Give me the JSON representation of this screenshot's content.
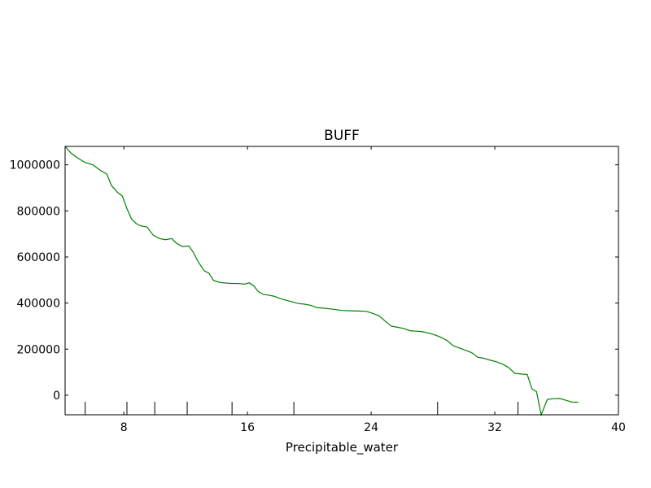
{
  "chart_data": {
    "type": "line",
    "title": "BUFF",
    "xlabel": "Precipitable_water",
    "ylabel": "",
    "xlim": [
      4.2,
      40
    ],
    "ylim": [
      -85000,
      1080000
    ],
    "xticks": [
      8,
      16,
      24,
      32,
      40
    ],
    "xtick_labels": [
      "8",
      "16",
      "24",
      "32",
      "40"
    ],
    "yticks": [
      0,
      200000,
      400000,
      600000,
      800000,
      1000000
    ],
    "ytick_labels": [
      "0",
      "200000",
      "400000",
      "600000",
      "800000",
      "1000000"
    ],
    "rug_x": [
      5.5,
      8.2,
      10.0,
      12.1,
      15.0,
      19.0,
      28.3,
      33.5
    ],
    "grid": false,
    "series": [
      {
        "color": "#008000",
        "x": [
          4.2,
          4.6,
          5.0,
          5.5,
          6.0,
          6.5,
          6.9,
          7.2,
          7.6,
          7.9,
          8.2,
          8.5,
          8.8,
          9.1,
          9.5,
          9.9,
          10.3,
          10.7,
          11.1,
          11.4,
          11.8,
          12.2,
          12.5,
          12.8,
          13.2,
          13.5,
          13.8,
          14.2,
          14.6,
          15.0,
          15.4,
          15.8,
          16.1,
          16.4,
          16.7,
          17.0,
          17.3,
          17.7,
          18.1,
          18.5,
          18.9,
          19.3,
          19.7,
          20.1,
          20.5,
          20.9,
          21.3,
          21.7,
          22.1,
          22.5,
          22.9,
          23.3,
          23.7,
          24.1,
          24.5,
          24.9,
          25.3,
          25.7,
          26.1,
          26.5,
          26.9,
          27.3,
          27.7,
          28.1,
          28.5,
          28.9,
          29.3,
          29.7,
          30.1,
          30.5,
          30.9,
          31.3,
          31.7,
          32.1,
          32.5,
          32.9,
          33.3,
          33.7,
          34.1,
          34.4,
          34.7,
          35.0,
          35.4,
          35.8,
          36.2,
          36.6,
          37.0,
          37.4
        ],
        "y": [
          1080000,
          1050000,
          1030000,
          1010000,
          1000000,
          975000,
          960000,
          910000,
          880000,
          865000,
          810000,
          765000,
          745000,
          735000,
          730000,
          695000,
          680000,
          675000,
          680000,
          660000,
          645000,
          648000,
          620000,
          580000,
          540000,
          530000,
          498000,
          490000,
          487000,
          485000,
          485000,
          482000,
          488000,
          475000,
          450000,
          438000,
          435000,
          430000,
          420000,
          412000,
          405000,
          398000,
          395000,
          390000,
          380000,
          378000,
          375000,
          372000,
          368000,
          367000,
          366000,
          365000,
          364000,
          355000,
          345000,
          322000,
          300000,
          295000,
          290000,
          280000,
          278000,
          276000,
          270000,
          262000,
          252000,
          238000,
          215000,
          205000,
          195000,
          185000,
          165000,
          160000,
          152000,
          145000,
          135000,
          120000,
          95000,
          92000,
          90000,
          28000,
          15000,
          -85000,
          -18000,
          -15000,
          -14000,
          -22000,
          -30000,
          -30000
        ]
      }
    ]
  }
}
